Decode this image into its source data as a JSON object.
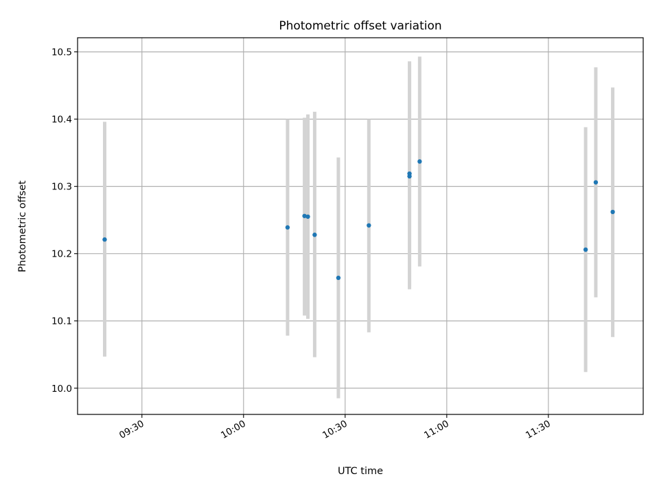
{
  "chart_data": {
    "type": "scatter",
    "title": "Photometric offset variation",
    "xlabel": "UTC time",
    "ylabel": "Photometric offset",
    "x_tick_labels": [
      "09:30",
      "10:00",
      "10:30",
      "11:00",
      "11:30"
    ],
    "y_tick_labels": [
      "10.0",
      "10.1",
      "10.2",
      "10.3",
      "10.4",
      "10.5"
    ],
    "xlim": [
      "09:11",
      "11:58"
    ],
    "ylim": [
      9.961,
      10.521
    ],
    "grid": true,
    "colors": {
      "point": "#1f77b4",
      "errorbar": "#d3d3d3",
      "grid": "#b0b0b0"
    },
    "series": [
      {
        "points": [
          {
            "x": "09:19",
            "y": 10.221,
            "y_low": 10.047,
            "y_high": 10.396
          },
          {
            "x": "10:13",
            "y": 10.239,
            "y_low": 10.078,
            "y_high": 10.4
          },
          {
            "x": "10:18",
            "y": 10.256,
            "y_low": 10.108,
            "y_high": 10.402
          },
          {
            "x": "10:19",
            "y": 10.255,
            "y_low": 10.103,
            "y_high": 10.407
          },
          {
            "x": "10:21",
            "y": 10.228,
            "y_low": 10.046,
            "y_high": 10.411
          },
          {
            "x": "10:28",
            "y": 10.164,
            "y_low": 9.985,
            "y_high": 10.343
          },
          {
            "x": "10:37",
            "y": 10.242,
            "y_low": 10.083,
            "y_high": 10.4
          },
          {
            "x": "10:49",
            "y": 10.319,
            "y_low": 10.151,
            "y_high": 10.486
          },
          {
            "x": "10:49",
            "y": 10.315,
            "y_low": 10.147,
            "y_high": 10.483
          },
          {
            "x": "10:52",
            "y": 10.337,
            "y_low": 10.181,
            "y_high": 10.493
          },
          {
            "x": "11:41",
            "y": 10.206,
            "y_low": 10.024,
            "y_high": 10.388
          },
          {
            "x": "11:44",
            "y": 10.306,
            "y_low": 10.135,
            "y_high": 10.477
          },
          {
            "x": "11:49",
            "y": 10.262,
            "y_low": 10.076,
            "y_high": 10.447
          }
        ]
      }
    ]
  }
}
